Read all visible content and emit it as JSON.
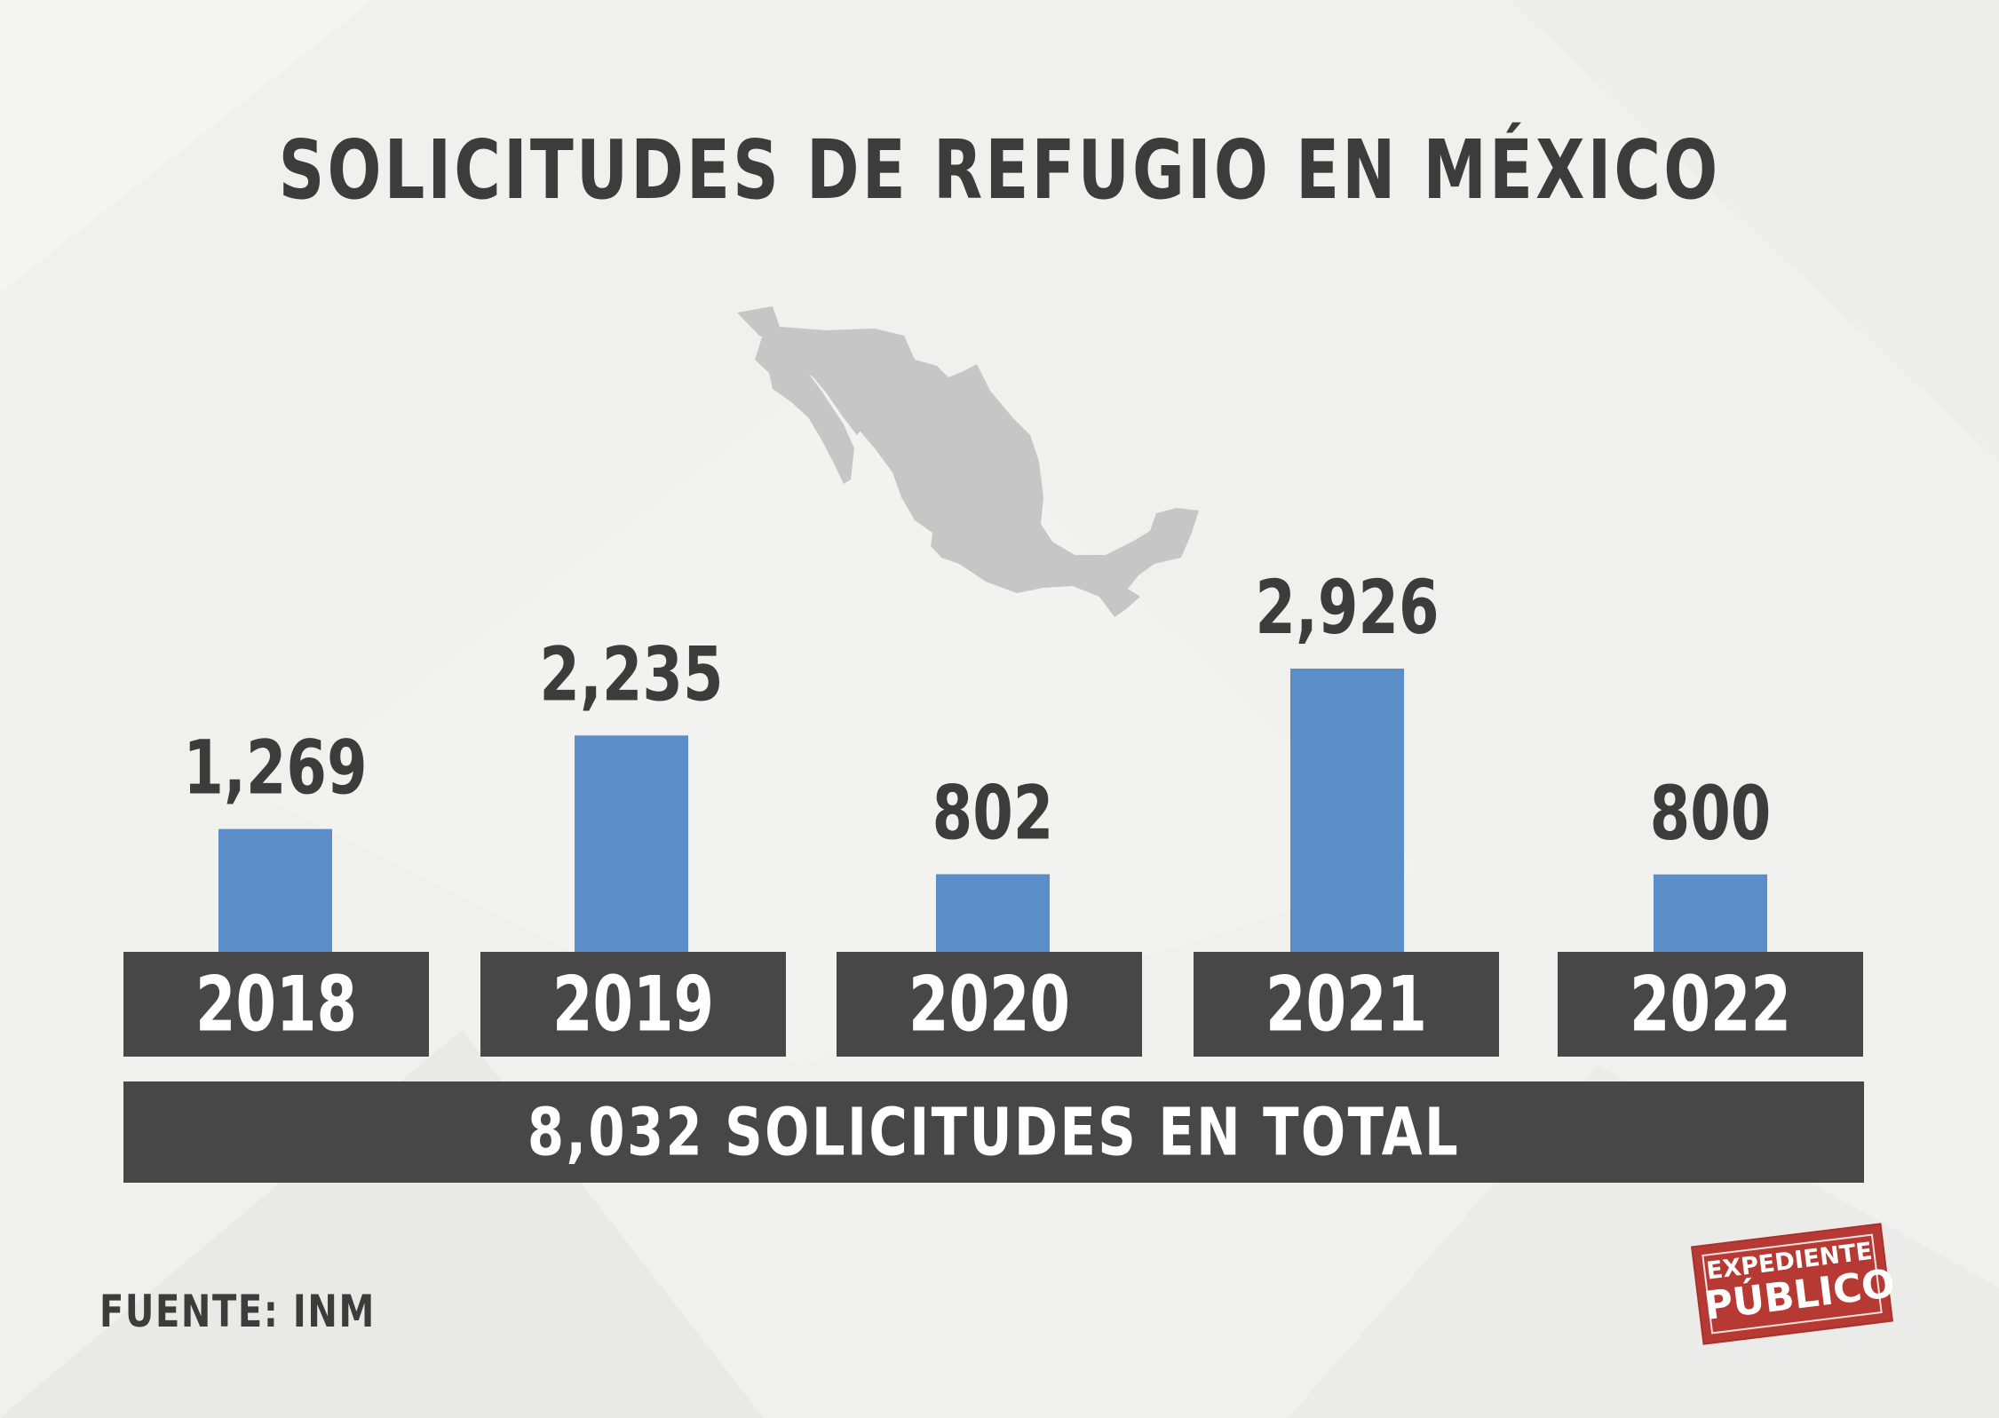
{
  "title": "SOLICITUDES DE REFUGIO EN MÉXICO",
  "total_label": "8,032 SOLICITUDES EN TOTAL",
  "source": "FUENTE: INM",
  "logo": {
    "line1": "EXPEDIENTE",
    "line2": "PÚBLICO"
  },
  "colors": {
    "bar": "#5b8dc9",
    "label_box": "#474747",
    "text_dark": "#3c3c3c",
    "map": "#c6c6c6",
    "logo": "#b63a33",
    "background": "#f0f0ef"
  },
  "map_icon": "mexico-map-icon",
  "chart_data": {
    "type": "bar",
    "title": "SOLICITUDES DE REFUGIO EN MÉXICO",
    "categories": [
      "2018",
      "2019",
      "2020",
      "2021",
      "2022"
    ],
    "values": [
      1269,
      2235,
      802,
      2926,
      800
    ],
    "value_labels": [
      "1,269",
      "2,235",
      "802",
      "2,926",
      "800"
    ],
    "total": 8032,
    "grid": false,
    "legend": "none",
    "xlabel": "",
    "ylabel": ""
  }
}
